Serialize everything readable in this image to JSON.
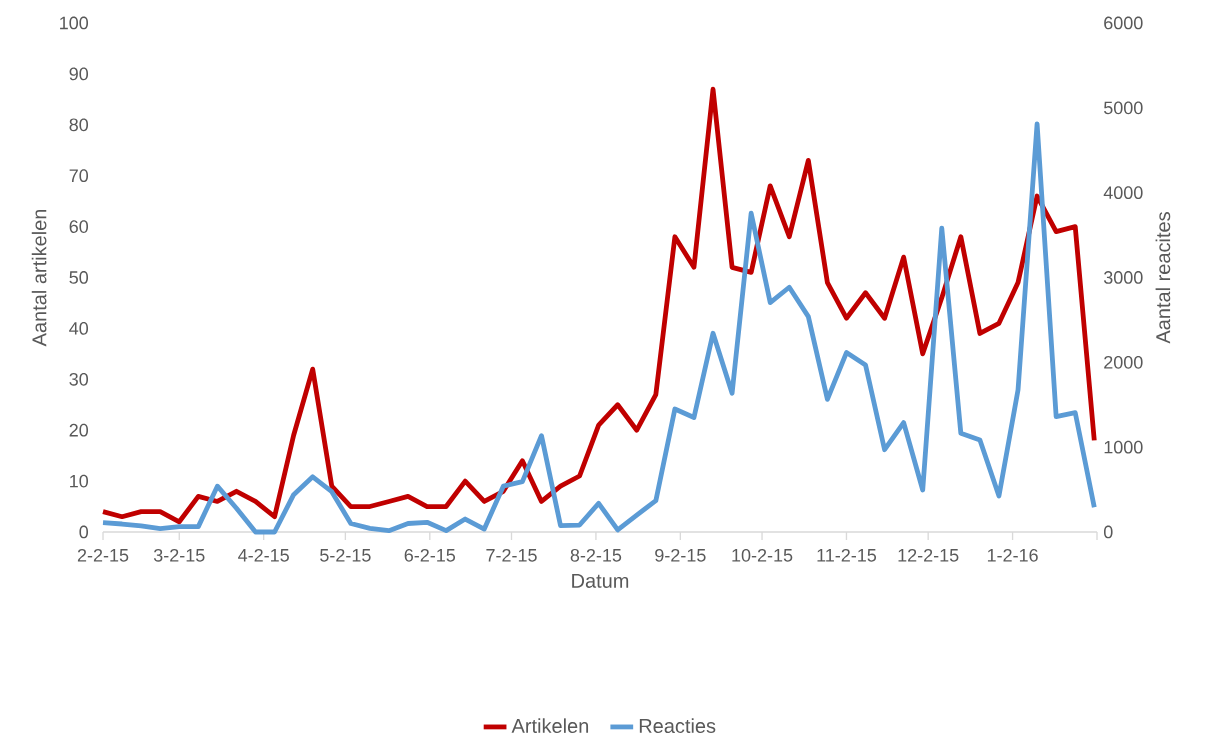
{
  "chart_data": {
    "type": "line",
    "xlabel": "Datum",
    "ylabel": "Aantal artikelen",
    "y2label": "Aantal reacites",
    "x": [
      "2015-02-02",
      "2015-02-09",
      "2015-02-16",
      "2015-02-23",
      "2015-03-02",
      "2015-03-09",
      "2015-03-16",
      "2015-03-23",
      "2015-03-30",
      "2015-04-06",
      "2015-04-13",
      "2015-04-20",
      "2015-04-27",
      "2015-05-04",
      "2015-05-11",
      "2015-05-18",
      "2015-05-25",
      "2015-06-01",
      "2015-06-08",
      "2015-06-15",
      "2015-06-22",
      "2015-06-29",
      "2015-07-06",
      "2015-07-13",
      "2015-07-20",
      "2015-07-27",
      "2015-08-03",
      "2015-08-10",
      "2015-08-17",
      "2015-08-24",
      "2015-08-31",
      "2015-09-07",
      "2015-09-14",
      "2015-09-21",
      "2015-09-28",
      "2015-10-05",
      "2015-10-12",
      "2015-10-19",
      "2015-10-26",
      "2015-11-02",
      "2015-11-09",
      "2015-11-16",
      "2015-11-23",
      "2015-11-30",
      "2015-12-07",
      "2015-12-14",
      "2015-12-21",
      "2015-12-28",
      "2016-01-04",
      "2016-01-11",
      "2016-01-18",
      "2016-01-25",
      "2016-02-01"
    ],
    "series": [
      {
        "name": "Artikelen",
        "color": "#c00000",
        "values": [
          4,
          3,
          4,
          4,
          2,
          7,
          6,
          8,
          6,
          3,
          19,
          32,
          9,
          5,
          5,
          6,
          7,
          5,
          5,
          10,
          6,
          8,
          14,
          6,
          9,
          11,
          21,
          25,
          20,
          27,
          58,
          52,
          87,
          52,
          51,
          68,
          58,
          73,
          49,
          42,
          47,
          42,
          54,
          35,
          46,
          58,
          39,
          41,
          49,
          66,
          59,
          60,
          18
        ]
      },
      {
        "name": "Reacties",
        "color": "#5b9bd5",
        "axis": "y2",
        "values": [
          110,
          94,
          71,
          39,
          63,
          63,
          540,
          280,
          0,
          0,
          440,
          650,
          475,
          100,
          43,
          16,
          100,
          114,
          16,
          153,
          35,
          540,
          593,
          1136,
          75,
          82,
          338,
          24,
          200,
          369,
          1450,
          1350,
          2343,
          1635,
          3758,
          2704,
          2885,
          2539,
          1564,
          2115,
          1969,
          970,
          1289,
          495,
          3581,
          1164,
          1085,
          425,
          1675,
          4811,
          1360,
          1407,
          291
        ]
      }
    ],
    "xlim": [
      "2015-02-02",
      "2016-02-02"
    ],
    "xticks": [
      {
        "value": "2015-02-02",
        "label": "2-2-15"
      },
      {
        "value": "2015-03-02",
        "label": "3-2-15"
      },
      {
        "value": "2015-04-02",
        "label": "4-2-15"
      },
      {
        "value": "2015-05-02",
        "label": "5-2-15"
      },
      {
        "value": "2015-06-02",
        "label": "6-2-15"
      },
      {
        "value": "2015-07-02",
        "label": "7-2-15"
      },
      {
        "value": "2015-08-02",
        "label": "8-2-15"
      },
      {
        "value": "2015-09-02",
        "label": "9-2-15"
      },
      {
        "value": "2015-10-02",
        "label": "10-2-15"
      },
      {
        "value": "2015-11-02",
        "label": "11-2-15"
      },
      {
        "value": "2015-12-02",
        "label": "12-2-15"
      },
      {
        "value": "2016-01-02",
        "label": "1-2-16"
      },
      {
        "value": "2016-02-02",
        "label": null
      }
    ],
    "ylim": [
      0,
      100
    ],
    "yticks": [
      0,
      10,
      20,
      30,
      40,
      50,
      60,
      70,
      80,
      90,
      100
    ],
    "y2lim": [
      0,
      6000
    ],
    "y2ticks": [
      0,
      1000,
      2000,
      3000,
      4000,
      5000,
      6000
    ],
    "legend": "bottom"
  }
}
